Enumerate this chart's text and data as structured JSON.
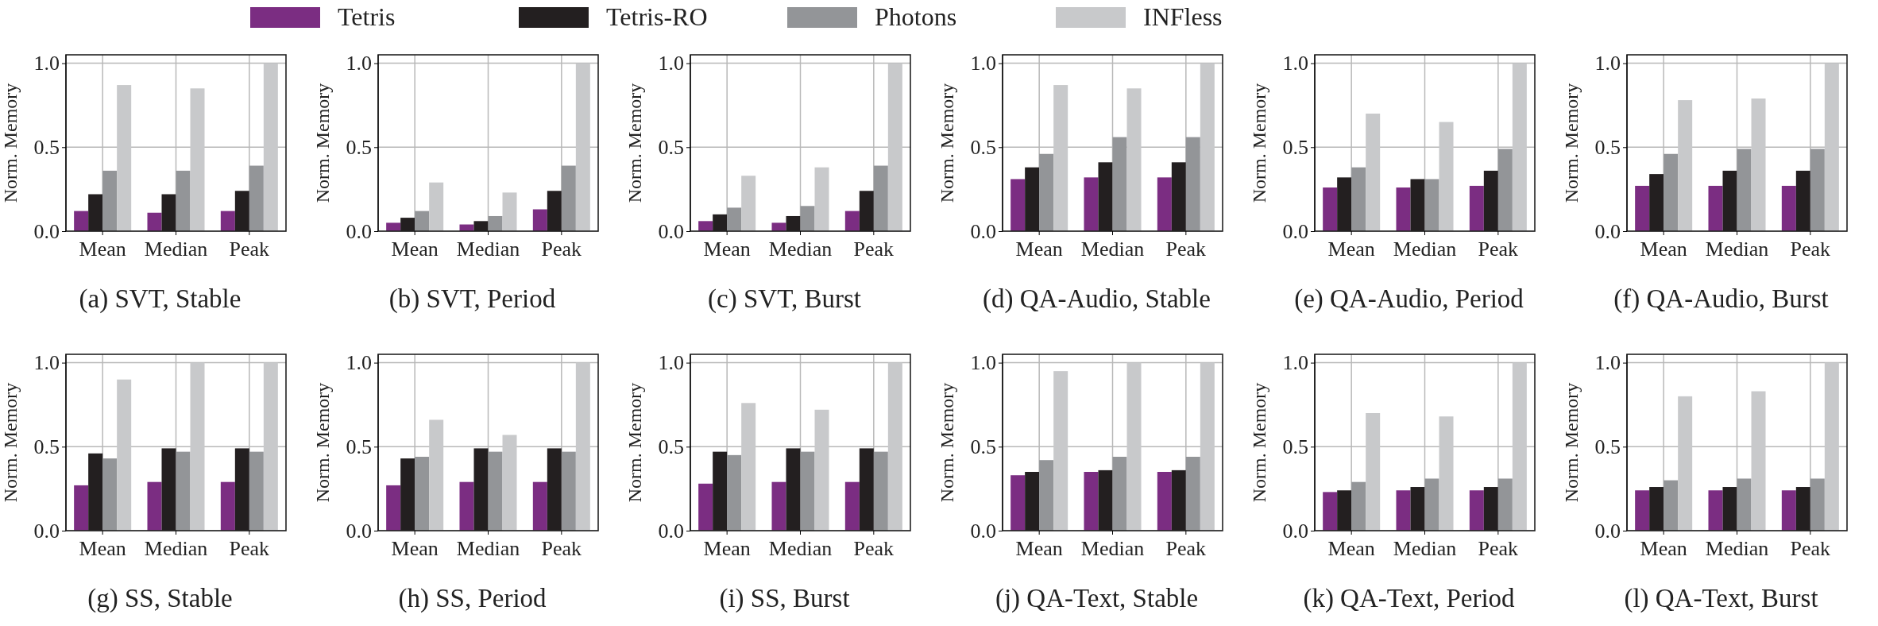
{
  "chart_data": [
    {
      "type": "bar",
      "title": "(a)  SVT, Stable",
      "ylabel": "Norm. Memory",
      "categories": [
        "Mean",
        "Median",
        "Peak"
      ],
      "ylim": [
        0,
        1.05
      ],
      "yticks": [
        {
          "value": 0,
          "label": "0.0"
        },
        {
          "value": 0.5,
          "label": "0.5"
        },
        {
          "value": 1,
          "label": "1.0"
        }
      ],
      "grid": true,
      "legend": "top",
      "series": [
        {
          "name": "Tetris",
          "color": "#7b2d82",
          "values": [
            0.12,
            0.11,
            0.12
          ]
        },
        {
          "name": "Tetris-RO",
          "color": "#231f20",
          "values": [
            0.22,
            0.22,
            0.24
          ]
        },
        {
          "name": "Photons",
          "color": "#939598",
          "values": [
            0.36,
            0.36,
            0.39
          ]
        },
        {
          "name": "INFless",
          "color": "#c8c9cb",
          "values": [
            0.87,
            0.85,
            1.0
          ]
        }
      ]
    },
    {
      "type": "bar",
      "title": "(b)  SVT, Period",
      "ylabel": "Norm. Memory",
      "categories": [
        "Mean",
        "Median",
        "Peak"
      ],
      "ylim": [
        0,
        1.05
      ],
      "yticks": [
        {
          "value": 0,
          "label": "0.0"
        },
        {
          "value": 0.5,
          "label": "0.5"
        },
        {
          "value": 1,
          "label": "1.0"
        }
      ],
      "grid": true,
      "series": [
        {
          "color": "#7b2d82",
          "values": [
            0.05,
            0.04,
            0.13
          ]
        },
        {
          "color": "#231f20",
          "values": [
            0.08,
            0.06,
            0.24
          ]
        },
        {
          "color": "#939598",
          "values": [
            0.12,
            0.09,
            0.39
          ]
        },
        {
          "color": "#c8c9cb",
          "values": [
            0.29,
            0.23,
            1.0
          ]
        }
      ]
    },
    {
      "type": "bar",
      "title": "(c)  SVT, Burst",
      "ylabel": "Norm. Memory",
      "categories": [
        "Mean",
        "Median",
        "Peak"
      ],
      "ylim": [
        0,
        1.05
      ],
      "yticks": [
        {
          "value": 0,
          "label": "0.0"
        },
        {
          "value": 0.5,
          "label": "0.5"
        },
        {
          "value": 1,
          "label": "1.0"
        }
      ],
      "grid": true,
      "series": [
        {
          "color": "#7b2d82",
          "values": [
            0.06,
            0.05,
            0.12
          ]
        },
        {
          "color": "#231f20",
          "values": [
            0.1,
            0.09,
            0.24
          ]
        },
        {
          "color": "#939598",
          "values": [
            0.14,
            0.15,
            0.39
          ]
        },
        {
          "color": "#c8c9cb",
          "values": [
            0.33,
            0.38,
            1.0
          ]
        }
      ]
    },
    {
      "type": "bar",
      "title": "(d)  QA-Audio, Stable",
      "ylabel": "Norm. Memory",
      "categories": [
        "Mean",
        "Median",
        "Peak"
      ],
      "ylim": [
        0,
        1.05
      ],
      "yticks": [
        {
          "value": 0,
          "label": "0.0"
        },
        {
          "value": 0.5,
          "label": "0.5"
        },
        {
          "value": 1,
          "label": "1.0"
        }
      ],
      "grid": true,
      "series": [
        {
          "color": "#7b2d82",
          "values": [
            0.31,
            0.32,
            0.32
          ]
        },
        {
          "color": "#231f20",
          "values": [
            0.38,
            0.41,
            0.41
          ]
        },
        {
          "color": "#939598",
          "values": [
            0.46,
            0.56,
            0.56
          ]
        },
        {
          "color": "#c8c9cb",
          "values": [
            0.87,
            0.85,
            1.0
          ]
        }
      ]
    },
    {
      "type": "bar",
      "title": "(e)  QA-Audio, Period",
      "ylabel": "Norm. Memory",
      "categories": [
        "Mean",
        "Median",
        "Peak"
      ],
      "ylim": [
        0,
        1.05
      ],
      "yticks": [
        {
          "value": 0,
          "label": "0.0"
        },
        {
          "value": 0.5,
          "label": "0.5"
        },
        {
          "value": 1,
          "label": "1.0"
        }
      ],
      "grid": true,
      "series": [
        {
          "color": "#7b2d82",
          "values": [
            0.26,
            0.26,
            0.27
          ]
        },
        {
          "color": "#231f20",
          "values": [
            0.32,
            0.31,
            0.36
          ]
        },
        {
          "color": "#939598",
          "values": [
            0.38,
            0.31,
            0.49
          ]
        },
        {
          "color": "#c8c9cb",
          "values": [
            0.7,
            0.65,
            1.0
          ]
        }
      ]
    },
    {
      "type": "bar",
      "title": "(f)  QA-Audio, Burst",
      "ylabel": "Norm. Memory",
      "categories": [
        "Mean",
        "Median",
        "Peak"
      ],
      "ylim": [
        0,
        1.05
      ],
      "yticks": [
        {
          "value": 0,
          "label": "0.0"
        },
        {
          "value": 0.5,
          "label": "0.5"
        },
        {
          "value": 1,
          "label": "1.0"
        }
      ],
      "grid": true,
      "series": [
        {
          "color": "#7b2d82",
          "values": [
            0.27,
            0.27,
            0.27
          ]
        },
        {
          "color": "#231f20",
          "values": [
            0.34,
            0.36,
            0.36
          ]
        },
        {
          "color": "#939598",
          "values": [
            0.46,
            0.49,
            0.49
          ]
        },
        {
          "color": "#c8c9cb",
          "values": [
            0.78,
            0.79,
            1.0
          ]
        }
      ]
    },
    {
      "type": "bar",
      "title": "(g)  SS, Stable",
      "ylabel": "Norm. Memory",
      "categories": [
        "Mean",
        "Median",
        "Peak"
      ],
      "ylim": [
        0,
        1.05
      ],
      "yticks": [
        {
          "value": 0,
          "label": "0.0"
        },
        {
          "value": 0.5,
          "label": "0.5"
        },
        {
          "value": 1,
          "label": "1.0"
        }
      ],
      "grid": true,
      "series": [
        {
          "color": "#7b2d82",
          "values": [
            0.27,
            0.29,
            0.29
          ]
        },
        {
          "color": "#231f20",
          "values": [
            0.46,
            0.49,
            0.49
          ]
        },
        {
          "color": "#939598",
          "values": [
            0.43,
            0.47,
            0.47
          ]
        },
        {
          "color": "#c8c9cb",
          "values": [
            0.9,
            1.0,
            1.0
          ]
        }
      ]
    },
    {
      "type": "bar",
      "title": "(h)  SS, Period",
      "ylabel": "Norm. Memory",
      "categories": [
        "Mean",
        "Median",
        "Peak"
      ],
      "ylim": [
        0,
        1.05
      ],
      "yticks": [
        {
          "value": 0,
          "label": "0.0"
        },
        {
          "value": 0.5,
          "label": "0.5"
        },
        {
          "value": 1,
          "label": "1.0"
        }
      ],
      "grid": true,
      "series": [
        {
          "color": "#7b2d82",
          "values": [
            0.27,
            0.29,
            0.29
          ]
        },
        {
          "color": "#231f20",
          "values": [
            0.43,
            0.49,
            0.49
          ]
        },
        {
          "color": "#939598",
          "values": [
            0.44,
            0.47,
            0.47
          ]
        },
        {
          "color": "#c8c9cb",
          "values": [
            0.66,
            0.57,
            1.0
          ]
        }
      ]
    },
    {
      "type": "bar",
      "title": "(i)  SS, Burst",
      "ylabel": "Norm. Memory",
      "categories": [
        "Mean",
        "Median",
        "Peak"
      ],
      "ylim": [
        0,
        1.05
      ],
      "yticks": [
        {
          "value": 0,
          "label": "0.0"
        },
        {
          "value": 0.5,
          "label": "0.5"
        },
        {
          "value": 1,
          "label": "1.0"
        }
      ],
      "grid": true,
      "series": [
        {
          "color": "#7b2d82",
          "values": [
            0.28,
            0.29,
            0.29
          ]
        },
        {
          "color": "#231f20",
          "values": [
            0.47,
            0.49,
            0.49
          ]
        },
        {
          "color": "#939598",
          "values": [
            0.45,
            0.47,
            0.47
          ]
        },
        {
          "color": "#c8c9cb",
          "values": [
            0.76,
            0.72,
            1.0
          ]
        }
      ]
    },
    {
      "type": "bar",
      "title": "(j)  QA-Text, Stable",
      "ylabel": "Norm. Memory",
      "categories": [
        "Mean",
        "Median",
        "Peak"
      ],
      "ylim": [
        0,
        1.05
      ],
      "yticks": [
        {
          "value": 0,
          "label": "0.0"
        },
        {
          "value": 0.5,
          "label": "0.5"
        },
        {
          "value": 1,
          "label": "1.0"
        }
      ],
      "grid": true,
      "series": [
        {
          "color": "#7b2d82",
          "values": [
            0.33,
            0.35,
            0.35
          ]
        },
        {
          "color": "#231f20",
          "values": [
            0.35,
            0.36,
            0.36
          ]
        },
        {
          "color": "#939598",
          "values": [
            0.42,
            0.44,
            0.44
          ]
        },
        {
          "color": "#c8c9cb",
          "values": [
            0.95,
            1.0,
            1.0
          ]
        }
      ]
    },
    {
      "type": "bar",
      "title": "(k)  QA-Text, Period",
      "ylabel": "Norm. Memory",
      "categories": [
        "Mean",
        "Median",
        "Peak"
      ],
      "ylim": [
        0,
        1.05
      ],
      "yticks": [
        {
          "value": 0,
          "label": "0.0"
        },
        {
          "value": 0.5,
          "label": "0.5"
        },
        {
          "value": 1,
          "label": "1.0"
        }
      ],
      "grid": true,
      "series": [
        {
          "color": "#7b2d82",
          "values": [
            0.23,
            0.24,
            0.24
          ]
        },
        {
          "color": "#231f20",
          "values": [
            0.24,
            0.26,
            0.26
          ]
        },
        {
          "color": "#939598",
          "values": [
            0.29,
            0.31,
            0.31
          ]
        },
        {
          "color": "#c8c9cb",
          "values": [
            0.7,
            0.68,
            1.0
          ]
        }
      ]
    },
    {
      "type": "bar",
      "title": "(l)  QA-Text, Burst",
      "ylabel": "Norm. Memory",
      "categories": [
        "Mean",
        "Median",
        "Peak"
      ],
      "ylim": [
        0,
        1.05
      ],
      "yticks": [
        {
          "value": 0,
          "label": "0.0"
        },
        {
          "value": 0.5,
          "label": "0.5"
        },
        {
          "value": 1,
          "label": "1.0"
        }
      ],
      "grid": true,
      "series": [
        {
          "color": "#7b2d82",
          "values": [
            0.24,
            0.24,
            0.24
          ]
        },
        {
          "color": "#231f20",
          "values": [
            0.26,
            0.26,
            0.26
          ]
        },
        {
          "color": "#939598",
          "values": [
            0.3,
            0.31,
            0.31
          ]
        },
        {
          "color": "#c8c9cb",
          "values": [
            0.8,
            0.83,
            1.0
          ]
        }
      ]
    }
  ]
}
